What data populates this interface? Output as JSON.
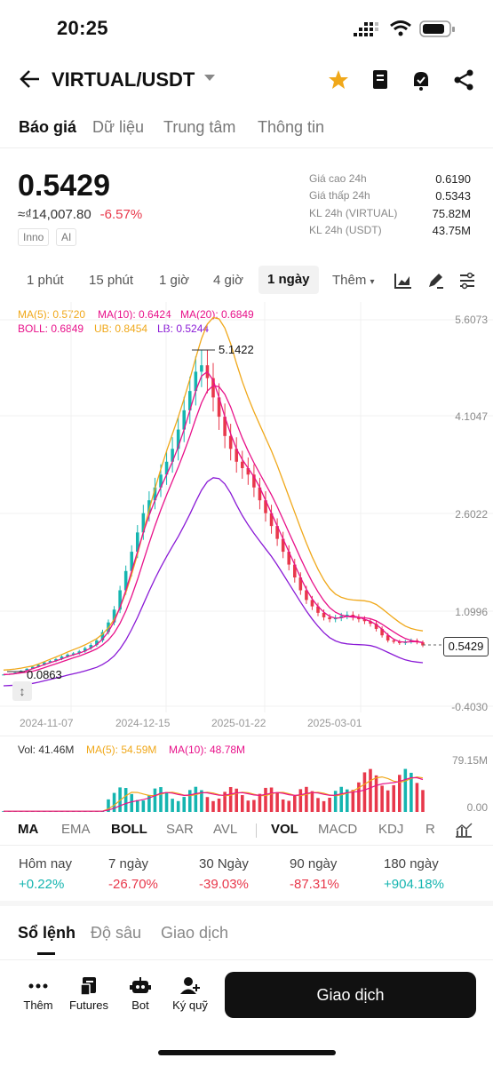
{
  "status": {
    "time": "20:25"
  },
  "header": {
    "pair": "VIRTUAL/USDT"
  },
  "tabs": [
    "Báo giá",
    "Dữ liệu",
    "Trung tâm",
    "Thông tin"
  ],
  "price": {
    "last": "0.5429",
    "fiat": "≈₫14,007.80",
    "change": "-6.57%",
    "tags": [
      "Inno",
      "AI"
    ]
  },
  "stats": [
    {
      "label": "Giá cao 24h",
      "value": "0.6190"
    },
    {
      "label": "Giá thấp 24h",
      "value": "0.5343"
    },
    {
      "label": "KL 24h (VIRTUAL)",
      "value": "75.82M"
    },
    {
      "label": "KL 24h (USDT)",
      "value": "43.75M"
    }
  ],
  "intervals": [
    "1 phút",
    "15 phút",
    "1 giờ",
    "4 giờ",
    "1 ngày",
    "Thêm"
  ],
  "indicators": {
    "ma5": "MA(5): 0.5720",
    "ma10": "MA(10): 0.6424",
    "ma20": "MA(20): 0.6849",
    "boll": "BOLL: 0.6849",
    "ub": "UB: 0.8454",
    "lb": "LB: 0.5244"
  },
  "y_axis": [
    "5.6073",
    "4.1047",
    "2.6022",
    "1.0996",
    "-0.4030"
  ],
  "chart_labels": {
    "high": "5.1422",
    "low": "0.0863",
    "last": "0.5429"
  },
  "dates": [
    "2024-11-07",
    "2024-12-15",
    "2025-01-22",
    "2025-03-01"
  ],
  "volume": {
    "vol": "Vol: 41.46M",
    "ma5": "MA(5): 54.59M",
    "ma10": "MA(10): 48.78M",
    "top": "79.15M",
    "bottom": "0.00"
  },
  "ind_tabs": [
    "MA",
    "EMA",
    "BOLL",
    "SAR",
    "AVL",
    "VOL",
    "MACD",
    "KDJ",
    "R"
  ],
  "performance": [
    {
      "label": "Hôm nay",
      "value": "+0.22%"
    },
    {
      "label": "7 ngày",
      "value": "-26.70%"
    },
    {
      "label": "30 Ngày",
      "value": "-39.03%"
    },
    {
      "label": "90 ngày",
      "value": "-87.31%"
    },
    {
      "label": "180 ngày",
      "value": "+904.18%"
    }
  ],
  "book_tabs": [
    "Sổ lệnh",
    "Độ sâu",
    "Giao dịch"
  ],
  "bottom_nav": [
    "Thêm",
    "Futures",
    "Bot",
    "Ký quỹ"
  ],
  "trade_button": "Giao dịch",
  "colors": {
    "up": "#15b5b0",
    "down": "#e8384b",
    "ma5": "#f0a81a",
    "ma10": "#e8128a",
    "boll": "#8a1ad6"
  },
  "chart_data": {
    "type": "candlestick",
    "x_ticks": [
      "2024-11-07",
      "2024-12-15",
      "2025-01-22",
      "2025-03-01"
    ],
    "y_ticks": [
      5.6073,
      4.1047,
      2.6022,
      1.0996,
      -0.403
    ],
    "ylim": [
      -0.403,
      5.6073
    ],
    "close_series": [
      0.09,
      0.1,
      0.12,
      0.15,
      0.18,
      0.21,
      0.24,
      0.28,
      0.3,
      0.33,
      0.37,
      0.4,
      0.42,
      0.45,
      0.5,
      0.55,
      0.62,
      0.75,
      0.9,
      1.1,
      1.4,
      1.7,
      2.0,
      2.3,
      2.6,
      2.8,
      3.0,
      3.2,
      3.4,
      3.6,
      3.9,
      4.2,
      4.5,
      4.8,
      4.9,
      4.7,
      4.4,
      4.1,
      3.8,
      3.6,
      3.4,
      3.3,
      3.2,
      3.0,
      2.8,
      2.6,
      2.4,
      2.2,
      2.0,
      1.8,
      1.6,
      1.4,
      1.25,
      1.15,
      1.05,
      0.98,
      0.95,
      0.97,
      1.0,
      1.02,
      0.98,
      0.95,
      0.92,
      0.88,
      0.8,
      0.7,
      0.62,
      0.6,
      0.58,
      0.6,
      0.62,
      0.59,
      0.5429
    ],
    "high": 5.1422,
    "low": 0.0863,
    "last": 0.5429,
    "volume_ylim": [
      0,
      79.15
    ]
  }
}
